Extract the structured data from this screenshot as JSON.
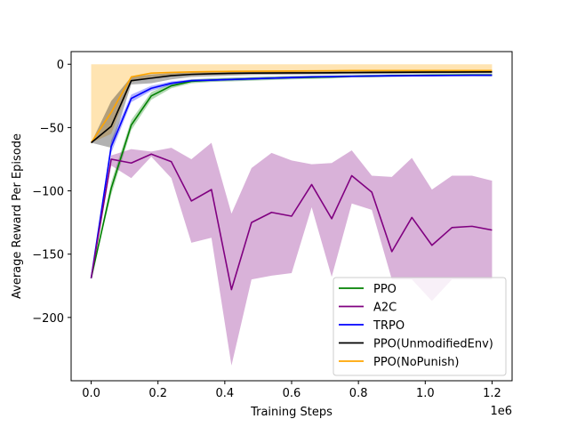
{
  "chart_data": {
    "type": "line",
    "title": "",
    "xlabel": "Training Steps",
    "ylabel": "Average Reward Per Episode",
    "x_offset_label": "1e6",
    "xlim": [
      -0.06,
      1.26
    ],
    "ylim": [
      -250,
      10
    ],
    "x_ticks": [
      0.0,
      0.2,
      0.4,
      0.6,
      0.8,
      1.0,
      1.2
    ],
    "x_tick_labels": [
      "0.0",
      "0.2",
      "0.4",
      "0.6",
      "0.8",
      "1.0",
      "1.2"
    ],
    "y_ticks": [
      0,
      -50,
      -100,
      -150,
      -200
    ],
    "y_tick_labels": [
      "0",
      "−50",
      "−100",
      "−150",
      "−200"
    ],
    "grid": false,
    "legend_position": "lower-right",
    "x": [
      0.0,
      0.06,
      0.12,
      0.18,
      0.24,
      0.3,
      0.36,
      0.42,
      0.48,
      0.54,
      0.6,
      0.66,
      0.72,
      0.78,
      0.84,
      0.9,
      0.96,
      1.02,
      1.08,
      1.14,
      1.2
    ],
    "series": [
      {
        "name": "PPO(NoPunish)",
        "color": "#ffa500",
        "values": [
          -62,
          -38,
          -10,
          -7,
          -6.5,
          -6,
          -5.8,
          -5.6,
          -5.5,
          -5.4,
          -5.3,
          -5.2,
          -5.1,
          -5,
          -5,
          -5,
          -5,
          -5,
          -5,
          -5,
          -5
        ],
        "band_upper": [
          0,
          0,
          0,
          0,
          0,
          0,
          0,
          0,
          0,
          0,
          0,
          0,
          0,
          0,
          0,
          0,
          0,
          0,
          0,
          0,
          0
        ],
        "band_lower": [
          -62,
          -55,
          -14,
          -10,
          -9,
          -8.5,
          -8,
          -8,
          -7.5,
          -7.5,
          -7.5,
          -7.2,
          -7,
          -7,
          -7,
          -7,
          -7,
          -7,
          -7,
          -7,
          -7
        ]
      },
      {
        "name": "PPO(UnmodifiedEnv)",
        "color": "#000000",
        "values": [
          -62,
          -49,
          -13,
          -11,
          -9,
          -8,
          -7.5,
          -7.2,
          -7,
          -6.9,
          -6.8,
          -6.8,
          -6.7,
          -6.6,
          -6.5,
          -6.4,
          -6.3,
          -6.2,
          -6.2,
          -6.1,
          -6
        ],
        "band_upper": [
          -62,
          -29,
          -10,
          -8,
          -7,
          -6.5,
          -6,
          -6,
          -5.8,
          -5.7,
          -5.6,
          -5.6,
          -5.5,
          -5.5,
          -5.4,
          -5.4,
          -5.3,
          -5.2,
          -5.2,
          -5.1,
          -5
        ],
        "band_lower": [
          -62,
          -66,
          -16,
          -15,
          -12,
          -10,
          -9.5,
          -9,
          -8.5,
          -8.3,
          -8.2,
          -8,
          -7.9,
          -7.8,
          -7.6,
          -7.5,
          -7.4,
          -7.3,
          -7.2,
          -7.1,
          -7
        ]
      },
      {
        "name": "PPO",
        "color": "#008000",
        "values": [
          -169,
          -98,
          -48,
          -25,
          -17,
          -13.5,
          -12.5,
          -12,
          -11.5,
          -11,
          -10.5,
          -10.3,
          -10,
          -9.5,
          -9.3,
          -9,
          -8.8,
          -8.7,
          -8.6,
          -8.5,
          -8.5
        ],
        "band_upper": [
          -169,
          -93,
          -44,
          -22,
          -15,
          -12,
          -11,
          -10.5,
          -10,
          -9.5,
          -9.2,
          -9,
          -8.8,
          -8.5,
          -8.3,
          -8,
          -7.9,
          -7.8,
          -7.7,
          -7.6,
          -7.5
        ],
        "band_lower": [
          -169,
          -103,
          -52,
          -28,
          -19,
          -15,
          -14,
          -13.5,
          -13,
          -12.5,
          -12,
          -11.6,
          -11.2,
          -10.5,
          -10.3,
          -10,
          -9.7,
          -9.6,
          -9.5,
          -9.4,
          -9.5
        ]
      },
      {
        "name": "TRPO",
        "color": "#0000ff",
        "values": [
          -169,
          -65,
          -27,
          -19,
          -15,
          -13,
          -12.5,
          -12,
          -11.5,
          -11,
          -10.5,
          -10,
          -9.8,
          -9.5,
          -9.3,
          -9.1,
          -9,
          -8.9,
          -8.8,
          -8.7,
          -8.7
        ],
        "band_upper": [
          -169,
          -60,
          -24,
          -17,
          -13.5,
          -12,
          -11.5,
          -11,
          -10.5,
          -10,
          -9.5,
          -9.2,
          -9,
          -8.7,
          -8.5,
          -8.3,
          -8.2,
          -8.1,
          -8,
          -7.9,
          -7.9
        ],
        "band_lower": [
          -169,
          -70,
          -30,
          -21,
          -16.5,
          -14,
          -13.5,
          -13,
          -12.5,
          -12,
          -11.5,
          -10.8,
          -10.6,
          -10.3,
          -10.1,
          -9.9,
          -9.8,
          -9.7,
          -9.6,
          -9.5,
          -9.5
        ]
      },
      {
        "name": "A2C",
        "color": "#800080",
        "values": [
          -169,
          -75,
          -78,
          -71,
          -77,
          -108,
          -99,
          -178,
          -125,
          -117,
          -120,
          -95,
          -122,
          -88,
          -101,
          -148,
          -121,
          -143,
          -129,
          -128,
          -131
        ],
        "band_upper": [
          -169,
          -72,
          -67,
          -69,
          -66,
          -75,
          -62,
          -118,
          -82,
          -70,
          -76,
          -79,
          -78,
          -68,
          -88,
          -89,
          -74,
          -99,
          -88,
          -88,
          -92
        ],
        "band_lower": [
          -169,
          -80,
          -90,
          -73,
          -90,
          -141,
          -137,
          -238,
          -170,
          -167,
          -165,
          -113,
          -168,
          -110,
          -115,
          -170,
          -170,
          -187,
          -170,
          -170,
          -170
        ]
      }
    ],
    "legend": [
      {
        "label": "PPO",
        "color": "#008000"
      },
      {
        "label": "A2C",
        "color": "#800080"
      },
      {
        "label": "TRPO",
        "color": "#0000ff"
      },
      {
        "label": "PPO(UnmodifiedEnv)",
        "color": "#000000"
      },
      {
        "label": "PPO(NoPunish)",
        "color": "#ffa500"
      }
    ]
  }
}
